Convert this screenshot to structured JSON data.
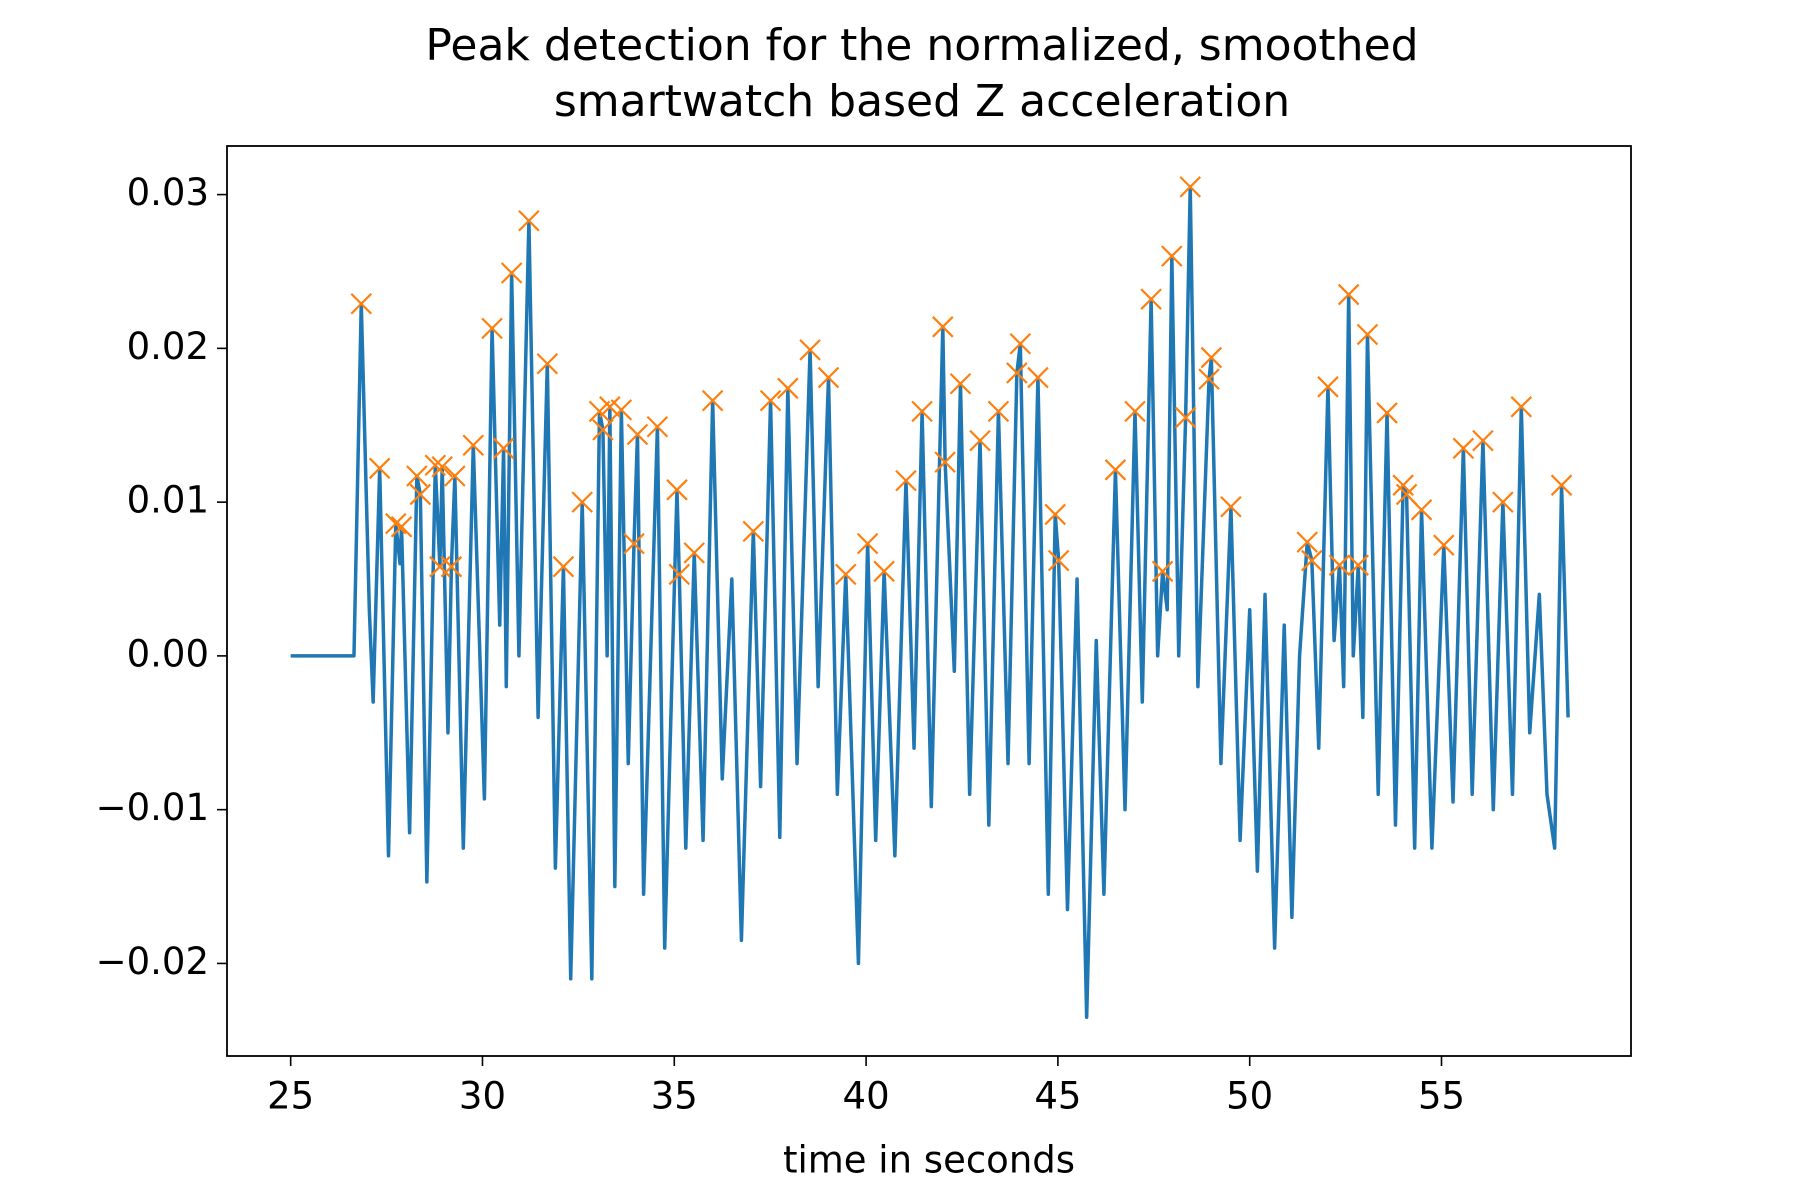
{
  "chart_data": {
    "type": "line",
    "title": "Peak detection for the normalized, smoothed",
    "subtitle": "smartwatch based Z acceleration",
    "x_label": "time in seconds",
    "xlim": [
      23.34,
      59.94
    ],
    "ylim": [
      -0.02602,
      0.03316
    ],
    "xticks": [
      25,
      30,
      35,
      40,
      45,
      50,
      55
    ],
    "yticks": [
      {
        "value": -0.02,
        "label": "−0.02"
      },
      {
        "value": -0.01,
        "label": "−0.01"
      },
      {
        "value": 0,
        "label": "0.00"
      },
      0.01,
      0.02,
      0.03
    ],
    "series": [
      {
        "color": "#1f77b4",
        "x": [
          25,
          26.65,
          26.84,
          27.05,
          27.15,
          27.32,
          27.55,
          27.74,
          27.85,
          27.89,
          28.1,
          28.29,
          28.38,
          28.55,
          28.77,
          28.89,
          28.95,
          29.1,
          29.19,
          29.28,
          29.5,
          29.76,
          30.05,
          30.25,
          30.45,
          30.55,
          30.62,
          30.76,
          30.95,
          31.21,
          31.45,
          31.69,
          31.9,
          32.11,
          32.3,
          32.6,
          32.85,
          33.05,
          33.14,
          33.25,
          33.32,
          33.45,
          33.62,
          33.8,
          33.95,
          34.04,
          34.2,
          34.56,
          34.75,
          35.07,
          35.13,
          35.3,
          35.52,
          35.75,
          36.0,
          36.25,
          36.5,
          36.75,
          37.06,
          37.25,
          37.51,
          37.75,
          37.96,
          38.2,
          38.54,
          38.75,
          39.02,
          39.25,
          39.47,
          39.8,
          40.04,
          40.25,
          40.47,
          40.75,
          41.04,
          41.25,
          41.46,
          41.7,
          42.0,
          42.06,
          42.3,
          42.46,
          42.7,
          42.97,
          43.2,
          43.45,
          43.7,
          43.93,
          44.02,
          44.25,
          44.48,
          44.75,
          44.93,
          45.02,
          45.25,
          45.5,
          45.75,
          46.0,
          46.2,
          46.5,
          46.75,
          47.01,
          47.2,
          47.43,
          47.6,
          47.73,
          47.85,
          47.97,
          48.15,
          48.33,
          48.45,
          48.65,
          48.94,
          49.0,
          49.25,
          49.51,
          49.75,
          50.0,
          50.2,
          50.4,
          50.65,
          50.9,
          51.1,
          51.3,
          51.5,
          51.62,
          51.8,
          52.04,
          52.2,
          52.34,
          52.45,
          52.58,
          52.7,
          52.83,
          52.95,
          53.07,
          53.35,
          53.58,
          53.8,
          54.0,
          54.09,
          54.3,
          54.48,
          54.75,
          55.06,
          55.3,
          55.57,
          55.8,
          56.08,
          56.35,
          56.6,
          56.85,
          57.08,
          57.3,
          57.55,
          57.75,
          57.95,
          58.13,
          58.3
        ],
        "values": [
          0,
          0,
          0.0229,
          0.003,
          -0.003,
          0.0122,
          -0.013,
          0.0086,
          0.006,
          0.0084,
          -0.0115,
          0.0117,
          0.0105,
          -0.0147,
          0.0124,
          0.0058,
          0.0123,
          -0.005,
          0.0058,
          0.0117,
          -0.0125,
          0.0137,
          -0.0093,
          0.0213,
          0.002,
          0.0135,
          -0.002,
          0.0249,
          0,
          0.0283,
          -0.004,
          0.019,
          -0.0138,
          0.0058,
          -0.021,
          0.01,
          -0.021,
          0.0159,
          0.0147,
          0,
          0.0162,
          -0.015,
          0.016,
          -0.007,
          0.0073,
          0.0144,
          -0.0155,
          0.0149,
          -0.019,
          0.0108,
          0.0053,
          -0.0125,
          0.0067,
          -0.012,
          0.0166,
          -0.008,
          0.005,
          -0.0185,
          0.0081,
          -0.0085,
          0.0166,
          -0.0118,
          0.0174,
          -0.007,
          0.0199,
          -0.002,
          0.0181,
          -0.009,
          0.0053,
          -0.02,
          0.0073,
          -0.012,
          0.0055,
          -0.013,
          0.0114,
          -0.006,
          0.0159,
          -0.0098,
          0.0214,
          0.0126,
          -0.001,
          0.0177,
          -0.009,
          0.014,
          -0.011,
          0.0159,
          -0.007,
          0.0184,
          0.0203,
          -0.007,
          0.0181,
          -0.0155,
          0.0092,
          0.0062,
          -0.0165,
          0.005,
          -0.0235,
          0.001,
          -0.0155,
          0.0121,
          -0.01,
          0.0159,
          -0.003,
          0.0232,
          0,
          0.0055,
          0.003,
          0.026,
          0,
          0.0155,
          0.0305,
          -0.002,
          0.018,
          0.0194,
          -0.007,
          0.0097,
          -0.012,
          0.003,
          -0.014,
          0.004,
          -0.019,
          0.002,
          -0.017,
          0,
          0.0074,
          0.0062,
          -0.006,
          0.0175,
          0.001,
          0.0059,
          -0.002,
          0.0235,
          0,
          0.0059,
          -0.004,
          0.0209,
          -0.009,
          0.0158,
          -0.011,
          0.0111,
          0.0105,
          -0.0125,
          0.0095,
          -0.0125,
          0.0072,
          -0.0095,
          0.0135,
          -0.009,
          0.014,
          -0.01,
          0.01,
          -0.009,
          0.0162,
          -0.005,
          0.004,
          -0.009,
          -0.0125,
          0.0111,
          -0.004
        ]
      },
      {
        "color": "#ff7f0e",
        "marker": "x",
        "x": [
          26.84,
          27.32,
          27.74,
          27.89,
          28.29,
          28.38,
          28.77,
          28.89,
          28.95,
          29.19,
          29.28,
          29.76,
          30.25,
          30.55,
          30.76,
          31.21,
          31.69,
          32.11,
          32.6,
          33.05,
          33.14,
          33.32,
          33.62,
          33.95,
          34.04,
          34.56,
          35.07,
          35.13,
          35.52,
          36.0,
          37.06,
          37.51,
          37.96,
          38.54,
          39.02,
          39.47,
          40.04,
          40.47,
          41.04,
          41.46,
          42.0,
          42.06,
          42.46,
          42.97,
          43.45,
          43.93,
          44.02,
          44.48,
          44.93,
          45.02,
          46.5,
          47.01,
          47.43,
          47.73,
          47.97,
          48.33,
          48.45,
          48.94,
          49.0,
          49.51,
          51.5,
          51.62,
          52.04,
          52.34,
          52.58,
          52.83,
          53.07,
          53.58,
          54.0,
          54.09,
          54.48,
          55.06,
          55.57,
          56.08,
          56.6,
          57.08,
          58.13
        ],
        "values": [
          0.0229,
          0.0122,
          0.0086,
          0.0084,
          0.0117,
          0.0105,
          0.0124,
          0.0058,
          0.0123,
          0.0058,
          0.0117,
          0.0137,
          0.0213,
          0.0135,
          0.0249,
          0.0283,
          0.019,
          0.0058,
          0.01,
          0.0159,
          0.0147,
          0.0162,
          0.016,
          0.0073,
          0.0144,
          0.0149,
          0.0108,
          0.0053,
          0.0067,
          0.0166,
          0.0081,
          0.0166,
          0.0174,
          0.0199,
          0.0181,
          0.0053,
          0.0073,
          0.0055,
          0.0114,
          0.0159,
          0.0214,
          0.0126,
          0.0177,
          0.014,
          0.0159,
          0.0184,
          0.0203,
          0.0181,
          0.0092,
          0.0062,
          0.0121,
          0.0159,
          0.0232,
          0.0055,
          0.026,
          0.0155,
          0.0305,
          0.018,
          0.0194,
          0.0097,
          0.0074,
          0.0062,
          0.0175,
          0.0059,
          0.0235,
          0.0059,
          0.0209,
          0.0158,
          0.0111,
          0.0105,
          0.0095,
          0.0072,
          0.0135,
          0.014,
          0.01,
          0.0162,
          0.0111
        ]
      }
    ]
  }
}
